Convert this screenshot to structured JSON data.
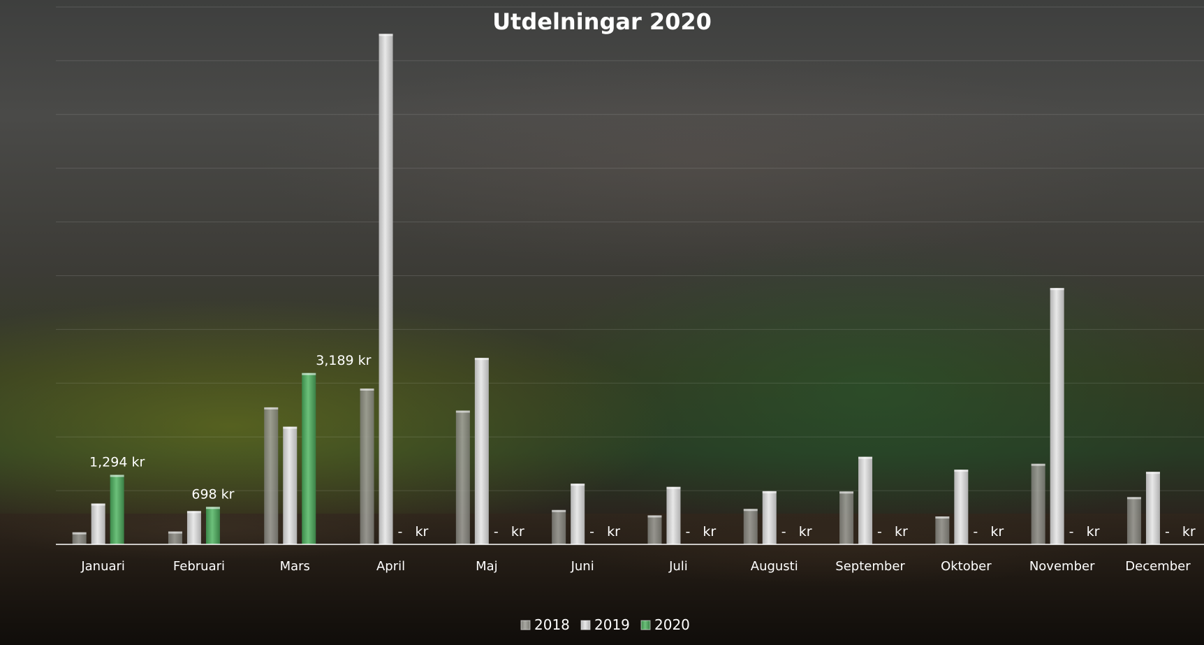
{
  "chart_data": {
    "type": "bar",
    "title": "Utdelningar 2020",
    "categories": [
      "Januari",
      "Februari",
      "Mars",
      "April",
      "Maj",
      "Juni",
      "Juli",
      "Augusti",
      "September",
      "Oktober",
      "November",
      "December"
    ],
    "series": [
      {
        "name": "2018",
        "color": "#9d9d97",
        "values": [
          225,
          240,
          2550,
          2900,
          2490,
          640,
          540,
          660,
          985,
          520,
          1500,
          880
        ]
      },
      {
        "name": "2019",
        "color": "#d6d6d6",
        "values": [
          760,
          620,
          2190,
          9500,
          3470,
          1130,
          1070,
          990,
          1630,
          1390,
          4770,
          1350
        ]
      },
      {
        "name": "2020",
        "color": "#57a662",
        "values": [
          1294,
          698,
          3189,
          0,
          0,
          0,
          0,
          0,
          0,
          0,
          0,
          0
        ]
      }
    ],
    "data_labels": [
      "1,294 kr",
      "698 kr",
      "3,189 kr",
      "-   kr",
      "-   kr",
      "-   kr",
      "-   kr",
      "-   kr",
      "-   kr",
      "-   kr",
      "-   kr",
      "-   kr"
    ],
    "ylim": [
      0,
      10000
    ],
    "grid": true,
    "legend": "bottom"
  }
}
